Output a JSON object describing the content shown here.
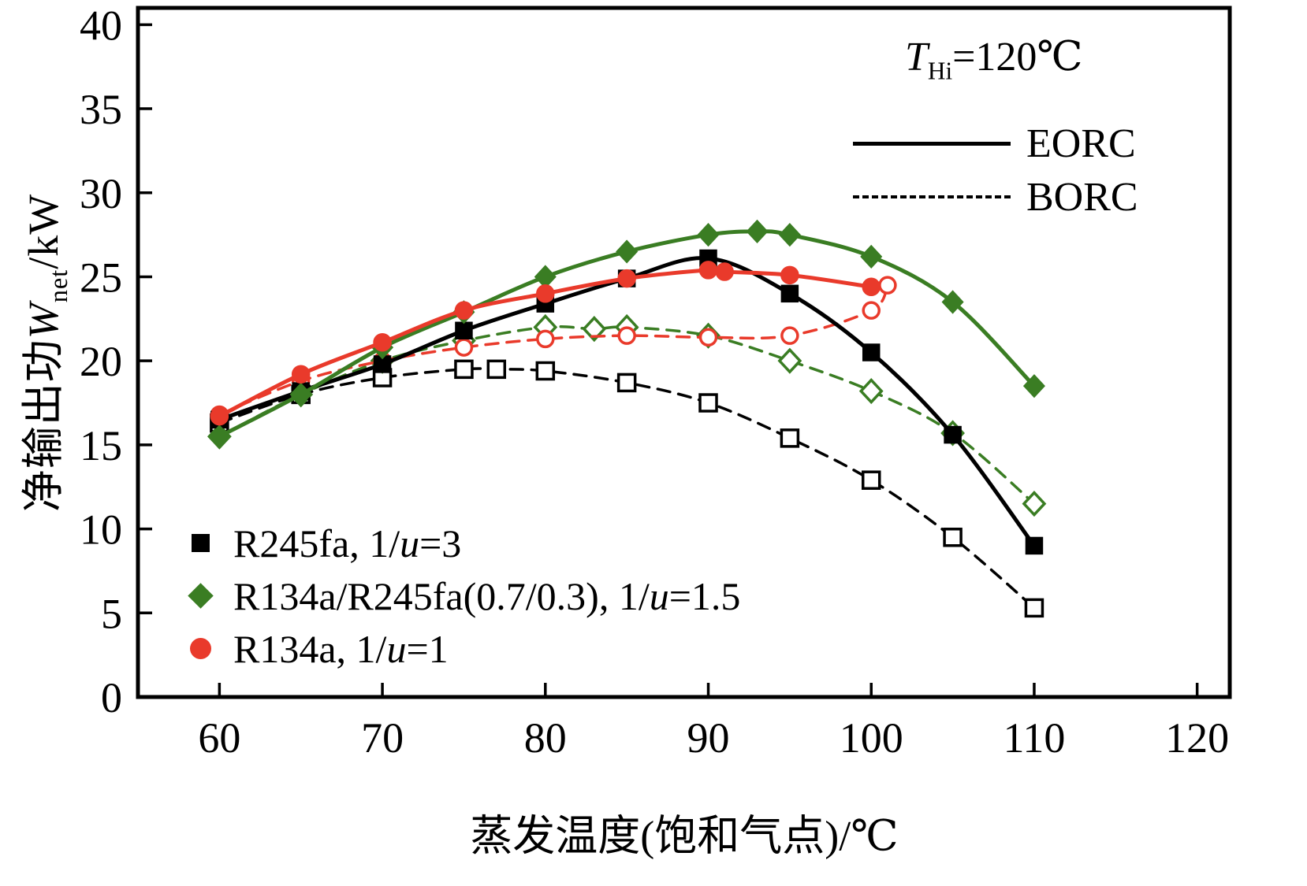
{
  "labels": {
    "ylabel": {
      "cjk": "净输出功",
      "var": "W",
      "sub": "net",
      "unit": "/kW"
    },
    "xlabel": "蒸发温度(饱和气点)/℃",
    "annotation": {
      "var": "T",
      "sub": "Hi",
      "rest": "=120℃"
    },
    "line_legend": [
      {
        "style": "solid",
        "label": "EORC"
      },
      {
        "style": "dashed",
        "label": "BORC"
      }
    ],
    "series_legend": [
      {
        "marker": "square",
        "color": "#000000",
        "pre": "R245fa, 1/",
        "it": "u",
        "post": "=3"
      },
      {
        "marker": "diamond",
        "color": "#3a7d23",
        "pre": "R134a/R245fa(0.7/0.3), 1/",
        "it": "u",
        "post": "=1.5"
      },
      {
        "marker": "circle",
        "color": "#e93a2b",
        "pre": "R134a, 1/",
        "it": "u",
        "post": "=1"
      }
    ]
  },
  "chart_data": {
    "type": "line",
    "title": "",
    "xlabel": "蒸发温度(饱和气点)/℃",
    "ylabel": "净输出功W_net/kW",
    "annotation": "T_Hi=120℃",
    "legend_position": "top-right and bottom-left",
    "grid": false,
    "xlim": [
      55,
      122
    ],
    "ylim": [
      0,
      41
    ],
    "xticks": [
      60,
      70,
      80,
      90,
      100,
      110,
      120
    ],
    "yticks": [
      0,
      5,
      10,
      15,
      20,
      25,
      30,
      35,
      40
    ],
    "colors": {
      "black": "#000000",
      "green": "#3a7d23",
      "red": "#e93a2b"
    },
    "series": [
      {
        "name": "R245fa BORC",
        "cycle": "BORC",
        "marker": "square",
        "fillmode": "open",
        "color": "#000000",
        "line": "dashed",
        "x": [
          60,
          65,
          70,
          75,
          77,
          80,
          85,
          90,
          95,
          100,
          105,
          110
        ],
        "y": [
          16.3,
          18.0,
          19.0,
          19.5,
          19.5,
          19.4,
          18.7,
          17.5,
          15.4,
          12.9,
          9.5,
          5.3
        ]
      },
      {
        "name": "R134a-R245fa BORC",
        "cycle": "BORC",
        "marker": "diamond",
        "fillmode": "open",
        "color": "#3a7d23",
        "line": "dashed",
        "x": [
          60,
          65,
          70,
          75,
          80,
          83,
          85,
          90,
          95,
          100,
          105,
          110
        ],
        "y": [
          15.5,
          18.0,
          20.0,
          21.2,
          22.0,
          21.9,
          22.0,
          21.5,
          20.0,
          18.2,
          15.7,
          11.5
        ]
      },
      {
        "name": "R134a BORC",
        "cycle": "BORC",
        "marker": "circle",
        "fillmode": "open",
        "color": "#e93a2b",
        "line": "dashed",
        "x": [
          60,
          65,
          70,
          75,
          80,
          85,
          90,
          95,
          100,
          101
        ],
        "y": [
          16.8,
          18.8,
          20.0,
          20.8,
          21.3,
          21.5,
          21.4,
          21.5,
          23.0,
          24.5
        ]
      },
      {
        "name": "R245fa EORC",
        "cycle": "EORC",
        "marker": "square",
        "fillmode": "filled",
        "color": "#000000",
        "line": "solid",
        "x": [
          60,
          65,
          70,
          75,
          80,
          85,
          90,
          95,
          100,
          105,
          110
        ],
        "y": [
          16.5,
          18.2,
          19.8,
          21.8,
          23.4,
          24.9,
          26.1,
          24.0,
          20.5,
          15.6,
          9.0
        ]
      },
      {
        "name": "R134a-R245fa EORC",
        "cycle": "EORC",
        "marker": "diamond",
        "fillmode": "filled",
        "color": "#3a7d23",
        "line": "solid",
        "x": [
          60,
          65,
          70,
          75,
          80,
          85,
          90,
          93,
          95,
          100,
          105,
          110
        ],
        "y": [
          15.5,
          18.0,
          20.8,
          22.9,
          25.0,
          26.5,
          27.5,
          27.7,
          27.5,
          26.2,
          23.5,
          18.5
        ]
      },
      {
        "name": "R134a EORC",
        "cycle": "EORC",
        "marker": "circle",
        "fillmode": "filled",
        "color": "#e93a2b",
        "line": "solid",
        "x": [
          60,
          65,
          70,
          75,
          80,
          85,
          90,
          91,
          95,
          100
        ],
        "y": [
          16.7,
          19.2,
          21.1,
          23.0,
          24.0,
          24.9,
          25.4,
          25.3,
          25.1,
          24.4
        ]
      }
    ]
  }
}
